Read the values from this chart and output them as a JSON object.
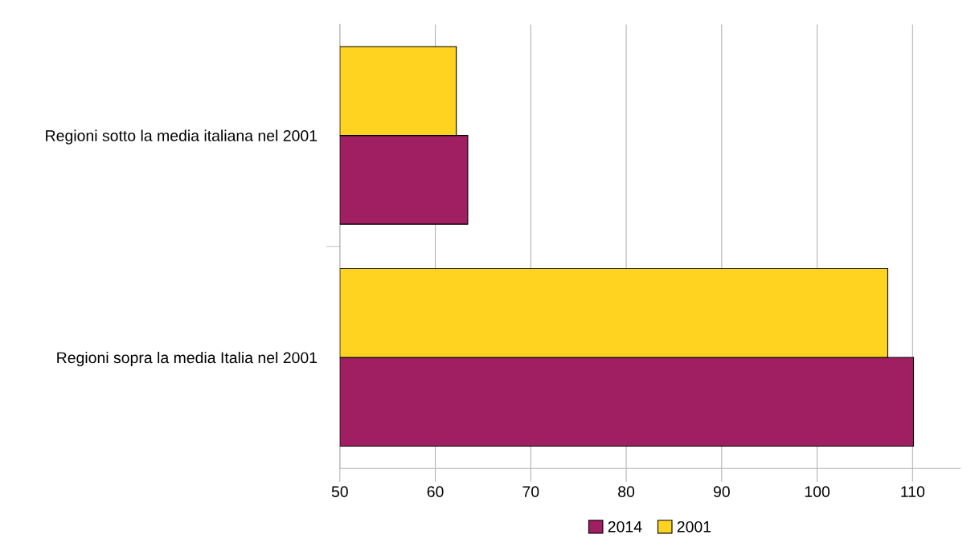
{
  "chart_data": {
    "type": "bar",
    "orientation": "horizontal",
    "categories": [
      "Regioni sotto la media italiana nel 2001",
      "Regioni sopra la media Italia nel 2001"
    ],
    "series": [
      {
        "name": "2014",
        "color": "#a01e62",
        "values": [
          63.4,
          110.1
        ]
      },
      {
        "name": "2001",
        "color": "#ffd320",
        "values": [
          62.2,
          107.4
        ]
      }
    ],
    "xlim": [
      50,
      115
    ],
    "xticks": [
      50,
      60,
      70,
      80,
      90,
      100,
      110
    ],
    "grid": "x",
    "legend": "bottom"
  }
}
